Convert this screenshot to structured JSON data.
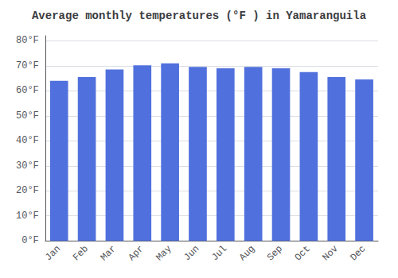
{
  "chart_data": {
    "type": "bar",
    "title": "Average monthly temperatures (°F ) in Yamaranguila",
    "categories": [
      "Jan",
      "Feb",
      "Mar",
      "Apr",
      "May",
      "Jun",
      "Jul",
      "Aug",
      "Sep",
      "Oct",
      "Nov",
      "Dec"
    ],
    "values": [
      64.0,
      65.5,
      68.5,
      70.2,
      71.0,
      69.5,
      69.0,
      69.5,
      69.0,
      67.5,
      65.5,
      64.5
    ],
    "ylim": [
      0,
      82
    ],
    "yticks": [
      {
        "value": 0,
        "label": "0°F"
      },
      {
        "value": 10,
        "label": "10°F"
      },
      {
        "value": 20,
        "label": "20°F"
      },
      {
        "value": 30,
        "label": "30°F"
      },
      {
        "value": 40,
        "label": "40°F"
      },
      {
        "value": 50,
        "label": "50°F"
      },
      {
        "value": 60,
        "label": "60°F"
      },
      {
        "value": 70,
        "label": "70°F"
      },
      {
        "value": 80,
        "label": "80°F"
      }
    ],
    "grid": true
  }
}
